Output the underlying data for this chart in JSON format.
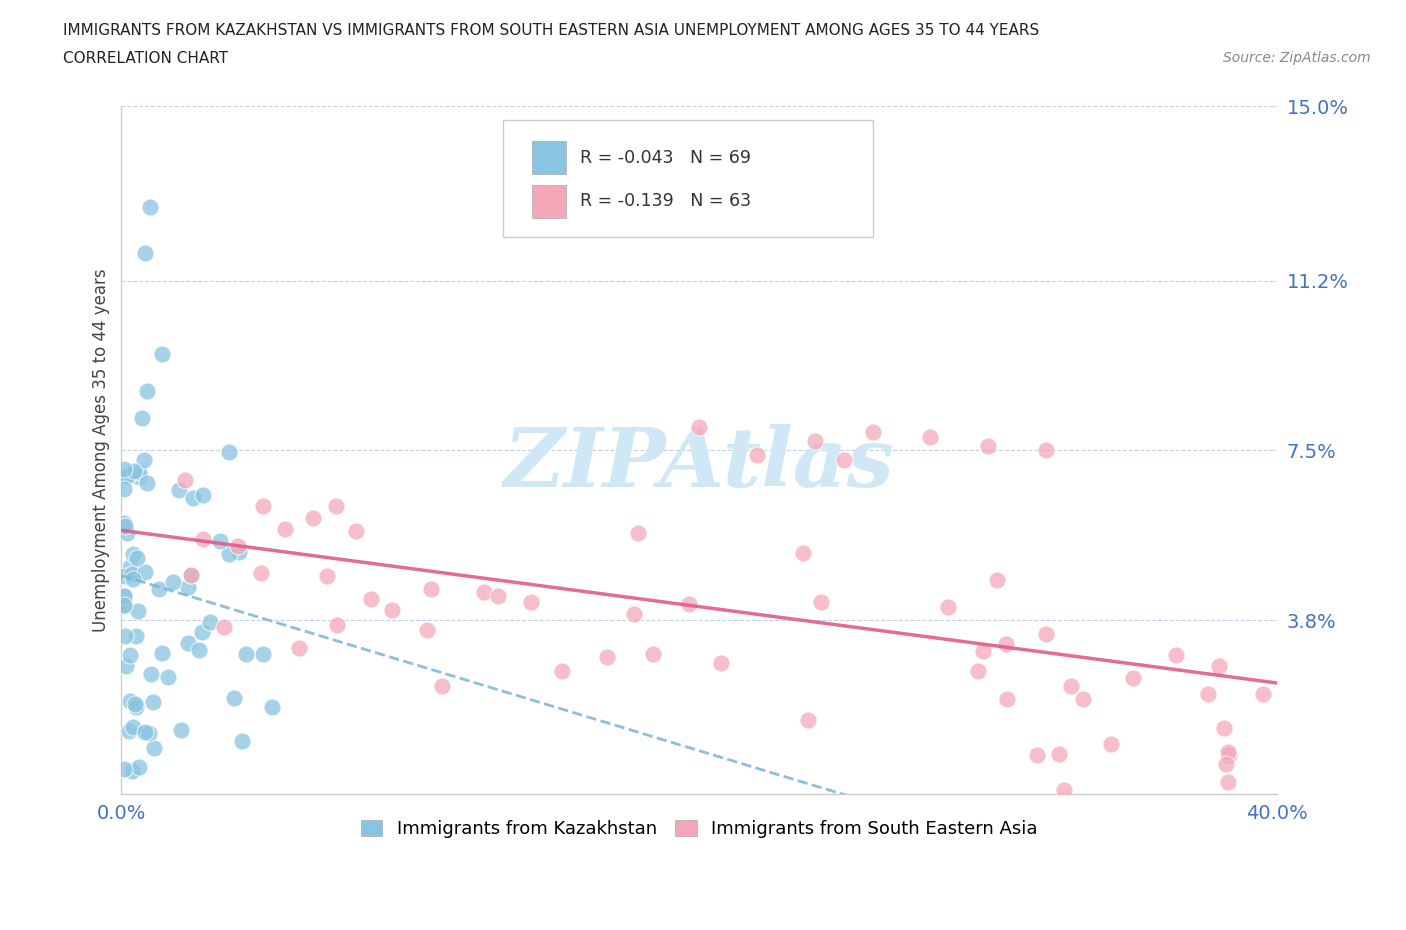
{
  "title_line1": "IMMIGRANTS FROM KAZAKHSTAN VS IMMIGRANTS FROM SOUTH EASTERN ASIA UNEMPLOYMENT AMONG AGES 35 TO 44 YEARS",
  "title_line2": "CORRELATION CHART",
  "source": "Source: ZipAtlas.com",
  "ylabel": "Unemployment Among Ages 35 to 44 years",
  "xlim": [
    0.0,
    0.4
  ],
  "ylim": [
    0.0,
    0.15
  ],
  "xticks": [
    0.0,
    0.05,
    0.1,
    0.15,
    0.2,
    0.25,
    0.3,
    0.35,
    0.4
  ],
  "xtick_labels": [
    "0.0%",
    "",
    "",
    "",
    "",
    "",
    "",
    "",
    "40.0%"
  ],
  "ytick_positions": [
    0.038,
    0.075,
    0.112,
    0.15
  ],
  "ytick_labels": [
    "3.8%",
    "7.5%",
    "11.2%",
    "15.0%"
  ],
  "legend_r1": "R = -0.043",
  "legend_n1": "N = 69",
  "legend_r2": "R = -0.139",
  "legend_n2": "N = 63",
  "color_kaz": "#89c4e1",
  "color_sea": "#f4a7b9",
  "color_kaz_line": "#7ab3d4",
  "color_sea_line": "#e05c8a",
  "background_color": "#ffffff",
  "watermark_color": "#d0e8f5",
  "legend_label1": "Immigrants from Kazakhstan",
  "legend_label2": "Immigrants from South Eastern Asia"
}
